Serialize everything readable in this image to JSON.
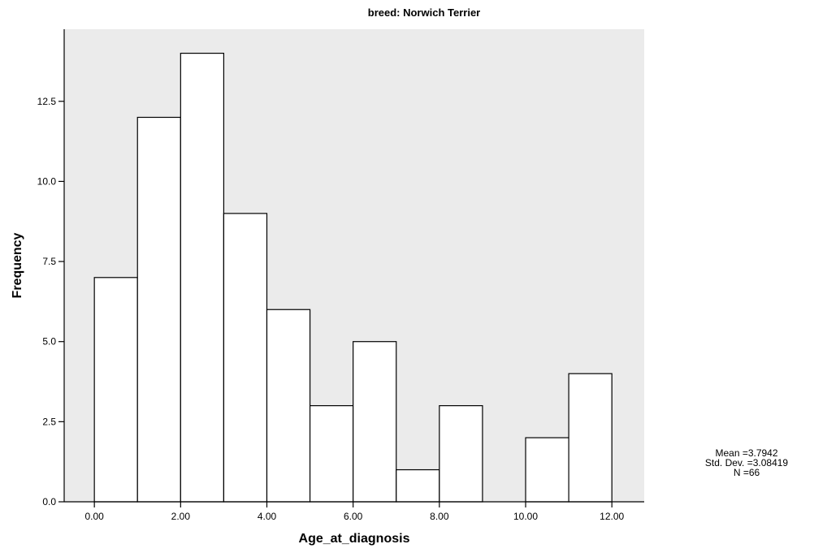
{
  "chart_data": {
    "type": "bar",
    "title": "breed: Norwich Terrier",
    "xlabel": "Age_at_diagnosis",
    "ylabel": "Frequency",
    "bins": [
      {
        "start": 0,
        "end": 1,
        "count": 7
      },
      {
        "start": 1,
        "end": 2,
        "count": 12
      },
      {
        "start": 2,
        "end": 3,
        "count": 14
      },
      {
        "start": 3,
        "end": 4,
        "count": 9
      },
      {
        "start": 4,
        "end": 5,
        "count": 6
      },
      {
        "start": 5,
        "end": 6,
        "count": 3
      },
      {
        "start": 6,
        "end": 7,
        "count": 5
      },
      {
        "start": 7,
        "end": 8,
        "count": 1
      },
      {
        "start": 8,
        "end": 9,
        "count": 3
      },
      {
        "start": 9,
        "end": 10,
        "count": 0
      },
      {
        "start": 10,
        "end": 11,
        "count": 2
      },
      {
        "start": 11,
        "end": 12,
        "count": 4
      }
    ],
    "x_ticks": [
      0,
      2,
      4,
      6,
      8,
      10,
      12
    ],
    "x_tick_labels": [
      "0.00",
      "2.00",
      "4.00",
      "6.00",
      "8.00",
      "10.00",
      "12.00"
    ],
    "y_ticks": [
      0,
      2.5,
      5,
      7.5,
      10,
      12.5
    ],
    "y_tick_labels": [
      "0.0",
      "2.5",
      "5.0",
      "7.5",
      "10.0",
      "12.5"
    ],
    "xlim": [
      -0.7,
      12.75
    ],
    "ylim": [
      0,
      14.75
    ],
    "grid": false,
    "colors": {
      "plot_background": "#ebebeb",
      "bar_fill": "#ffffff",
      "bar_stroke": "#000000"
    }
  },
  "stats": {
    "mean": "Mean =3.7942",
    "std_dev": "Std. Dev. =3.08419",
    "n": "N =66"
  }
}
